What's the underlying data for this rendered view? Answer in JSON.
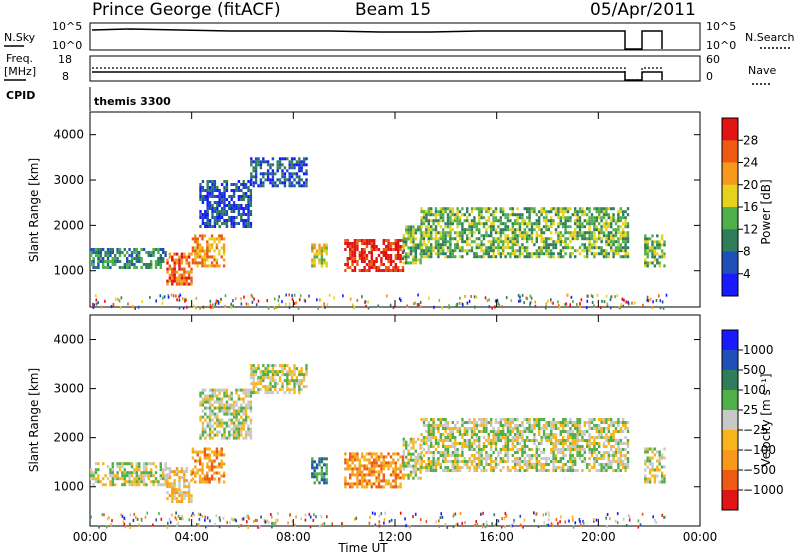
{
  "header": {
    "station": "Prince George (fitACF)",
    "beam": "Beam 15",
    "date": "05/Apr/2011"
  },
  "aux_panels": {
    "nsky_label": "N.Sky",
    "nsky_ticks": [
      "10^5",
      "10^0"
    ],
    "nsearch_label": "N.Search",
    "nsearch_ticks": [
      "10^5",
      "10^0"
    ],
    "freq_label_line1": "Freq.",
    "freq_label_line2": "[MHz]",
    "freq_ticks": [
      "18",
      "8"
    ],
    "nave_label": "Nave",
    "nave_ticks": [
      "60",
      "0"
    ],
    "cpid_label": "CPID",
    "cpid_value": "themis 3300"
  },
  "chart_data": [
    {
      "type": "heatmap",
      "name": "power",
      "xlabel": "",
      "ylabel": "Slant Range [km]",
      "yticks": [
        "1000",
        "2000",
        "3000",
        "4000"
      ],
      "ylim": [
        200,
        4500
      ],
      "xlim": [
        0,
        24
      ],
      "colorbar": {
        "label": "Power [dB]",
        "ticks": [
          "4",
          "8",
          "12",
          "16",
          "20",
          "24",
          "28"
        ],
        "colors": [
          "#1a1aff",
          "#1f4fb8",
          "#2f7d5a",
          "#4fb04a",
          "#e6d21c",
          "#f79a1c",
          "#ee5a12",
          "#e01414"
        ]
      },
      "echo_regions": [
        {
          "t0": 0.0,
          "t1": 3.0,
          "r0": 1050,
          "r1": 1500,
          "level": 2
        },
        {
          "t0": 3.0,
          "t1": 4.0,
          "r0": 700,
          "r1": 1400,
          "level": 6
        },
        {
          "t0": 4.0,
          "t1": 5.3,
          "r0": 1100,
          "r1": 1800,
          "level": 5
        },
        {
          "t0": 4.3,
          "t1": 6.3,
          "r0": 2000,
          "r1": 3000,
          "level": 1
        },
        {
          "t0": 6.3,
          "t1": 8.5,
          "r0": 2900,
          "r1": 3500,
          "level": 1
        },
        {
          "t0": 8.7,
          "t1": 9.3,
          "r0": 1100,
          "r1": 1600,
          "level": 4
        },
        {
          "t0": 10.0,
          "t1": 12.3,
          "r0": 1000,
          "r1": 1700,
          "level": 7
        },
        {
          "t0": 12.3,
          "t1": 13.0,
          "r0": 1200,
          "r1": 2000,
          "level": 3
        },
        {
          "t0": 13.0,
          "t1": 21.2,
          "r0": 1300,
          "r1": 2400,
          "level": 3
        },
        {
          "t0": 21.8,
          "t1": 22.6,
          "r0": 1100,
          "r1": 1800,
          "level": 3
        }
      ]
    },
    {
      "type": "heatmap",
      "name": "velocity",
      "xlabel": "Time UT",
      "ylabel": "Slant Range [km]",
      "xticks": [
        "00:00",
        "04:00",
        "08:00",
        "12:00",
        "16:00",
        "20:00",
        "00:00"
      ],
      "yticks": [
        "1000",
        "2000",
        "3000",
        "4000"
      ],
      "ylim": [
        200,
        4500
      ],
      "xlim": [
        0,
        24
      ],
      "colorbar": {
        "label": "Velocity [m s⁻¹]",
        "ticks": [
          "1000",
          "500",
          "100",
          "25",
          "−25",
          "−100",
          "−500",
          "−1000"
        ],
        "colors": [
          "#1a1aff",
          "#1f4fb8",
          "#2f7d5a",
          "#4fb04a",
          "#c8c8c8",
          "#f7b51c",
          "#f79a1c",
          "#ee5a12",
          "#e01414"
        ]
      },
      "echo_regions": [
        {
          "t0": 0.0,
          "t1": 3.0,
          "r0": 1050,
          "r1": 1500,
          "level": 4
        },
        {
          "t0": 3.0,
          "t1": 4.0,
          "r0": 700,
          "r1": 1400,
          "level": 5
        },
        {
          "t0": 4.0,
          "t1": 5.3,
          "r0": 1100,
          "r1": 1800,
          "level": 6
        },
        {
          "t0": 4.3,
          "t1": 6.3,
          "r0": 2000,
          "r1": 3000,
          "level": 4
        },
        {
          "t0": 6.3,
          "t1": 8.5,
          "r0": 2900,
          "r1": 3500,
          "level": 4
        },
        {
          "t0": 8.7,
          "t1": 9.3,
          "r0": 1100,
          "r1": 1600,
          "level": 2
        },
        {
          "t0": 10.0,
          "t1": 12.3,
          "r0": 1000,
          "r1": 1700,
          "level": 6
        },
        {
          "t0": 12.3,
          "t1": 13.0,
          "r0": 1200,
          "r1": 2000,
          "level": 4
        },
        {
          "t0": 13.0,
          "t1": 21.2,
          "r0": 1300,
          "r1": 2400,
          "level": 4
        },
        {
          "t0": 21.8,
          "t1": 22.6,
          "r0": 1100,
          "r1": 1800,
          "level": 4
        }
      ]
    }
  ]
}
